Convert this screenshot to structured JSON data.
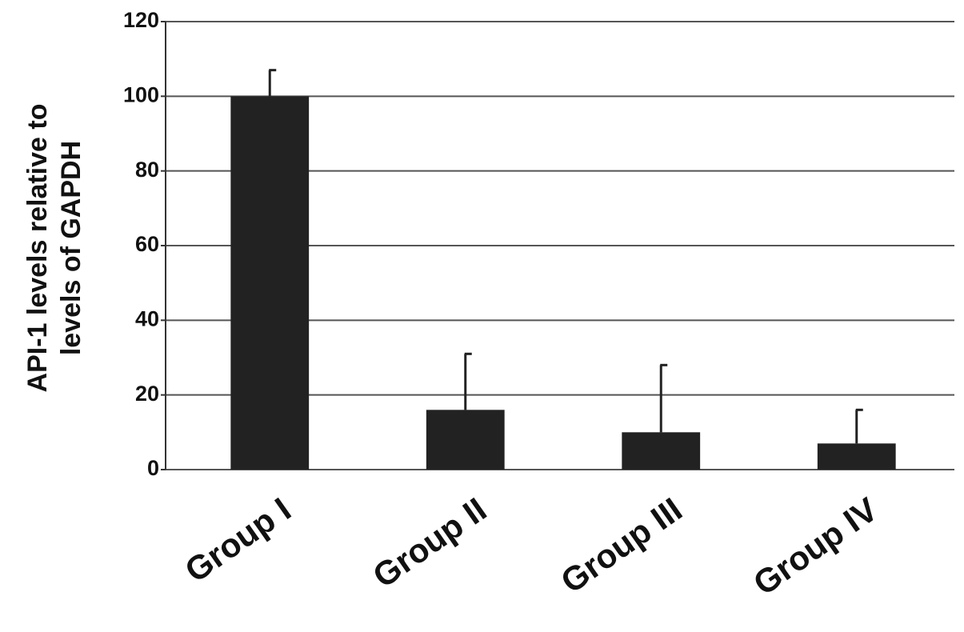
{
  "chart_data": {
    "type": "bar",
    "y_label": [
      "API-1 levels relative to",
      "levels of GAPDH"
    ],
    "categories": [
      "Group I",
      "Group II",
      "Group III",
      "Group IV"
    ],
    "values": [
      100,
      16,
      10,
      7
    ],
    "errors": [
      7,
      15,
      18,
      9
    ],
    "color": "#222222",
    "ylim": [
      0,
      120
    ],
    "yticks": [
      0,
      20,
      40,
      60,
      80,
      100,
      120
    ],
    "grid": true
  }
}
